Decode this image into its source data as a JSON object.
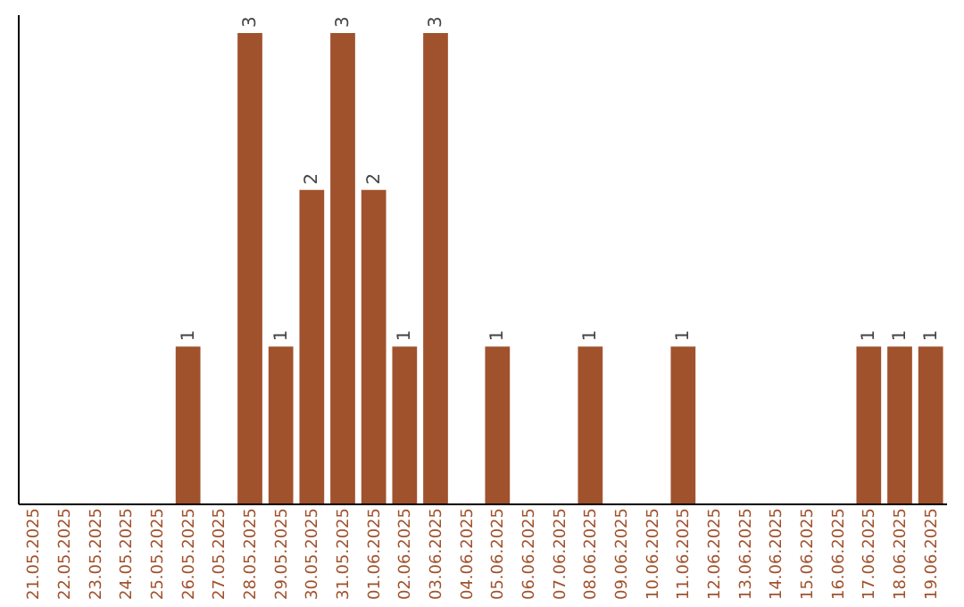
{
  "chart_data": {
    "type": "bar",
    "categories": [
      "21.05.2025",
      "22.05.2025",
      "23.05.2025",
      "24.05.2025",
      "25.05.2025",
      "26.05.2025",
      "27.05.2025",
      "28.05.2025",
      "29.05.2025",
      "30.05.2025",
      "31.05.2025",
      "01.06.2025",
      "02.06.2025",
      "03.06.2025",
      "04.06.2025",
      "05.06.2025",
      "06.06.2025",
      "07.06.2025",
      "08.06.2025",
      "09.06.2025",
      "10.06.2025",
      "11.06.2025",
      "12.06.2025",
      "13.06.2025",
      "14.06.2025",
      "15.06.2025",
      "16.06.2025",
      "17.06.2025",
      "18.06.2025",
      "19.06.2025"
    ],
    "values": [
      0,
      0,
      0,
      0,
      0,
      1,
      0,
      3,
      1,
      2,
      3,
      2,
      1,
      3,
      0,
      1,
      0,
      0,
      1,
      0,
      0,
      1,
      0,
      0,
      0,
      0,
      0,
      1,
      1,
      1
    ],
    "value_labels": [
      null,
      null,
      null,
      null,
      null,
      "1",
      null,
      "3",
      "1",
      "2",
      "3",
      "2",
      "1",
      "3",
      null,
      "1",
      null,
      null,
      "1",
      null,
      null,
      "1",
      null,
      null,
      null,
      null,
      null,
      "1",
      "1",
      "1"
    ],
    "color": "#a0522d",
    "ylim": [
      0,
      3.12
    ],
    "tick_labels": "x"
  }
}
